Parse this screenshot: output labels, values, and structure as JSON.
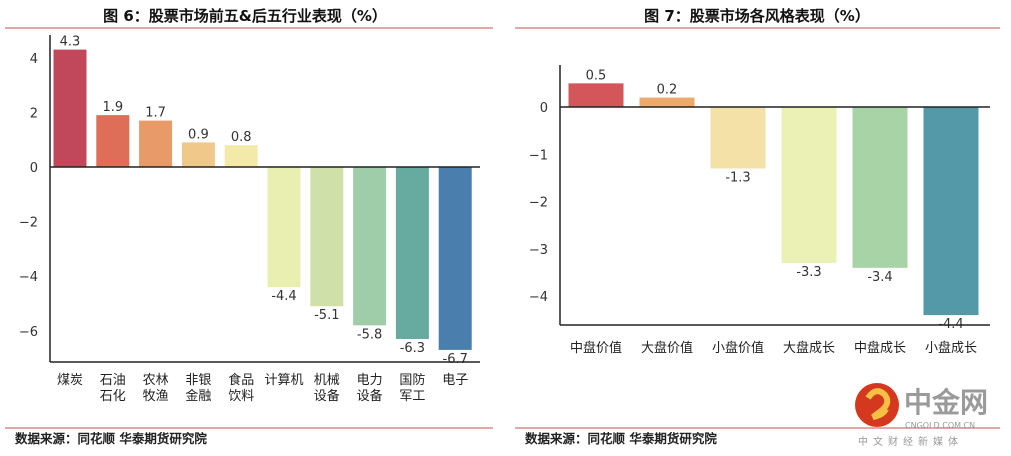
{
  "chart_data": [
    {
      "type": "bar",
      "title": "图 6：股票市场前五&后五行业表现（%）",
      "categories": [
        "煤炭",
        "石油石化",
        "农林牧渔",
        "非银金融",
        "食品饮料",
        "计算机",
        "机械设备",
        "电力设备",
        "国防军工",
        "电子"
      ],
      "values": [
        4.3,
        1.9,
        1.7,
        0.9,
        0.8,
        -4.4,
        -5.1,
        -5.8,
        -6.3,
        -6.7
      ],
      "value_labels": [
        "4.3",
        "1.9",
        "1.7",
        "0.9",
        "0.8",
        "-4.4",
        "-5.1",
        "-5.8",
        "-6.3",
        "-6.7"
      ],
      "colors": [
        "#c0485a",
        "#de6e57",
        "#e89b68",
        "#f0c98a",
        "#f3e9a8",
        "#e9efb0",
        "#cfe0a8",
        "#9fcca9",
        "#67aaa0",
        "#4a7eac"
      ],
      "yticks": [
        4,
        2,
        0,
        -2,
        -4,
        -6
      ],
      "ytick_labels": [
        "4",
        "2",
        "0",
        "−2",
        "−4",
        "−6"
      ],
      "ylim": [
        -7.2,
        4.6
      ],
      "source": "数据来源：同花顺  华泰期货研究院"
    },
    {
      "type": "bar",
      "title": "图 7：股票市场各风格表现（%）",
      "categories": [
        "中盘价值",
        "大盘价值",
        "小盘价值",
        "大盘成长",
        "中盘成长",
        "小盘成长"
      ],
      "values": [
        0.5,
        0.2,
        -1.3,
        -3.3,
        -3.4,
        -4.4
      ],
      "value_labels": [
        "0.5",
        "0.2",
        "-1.3",
        "-3.3",
        "-3.4",
        "-4.4"
      ],
      "colors": [
        "#d2565a",
        "#ecab6d",
        "#f3e1a7",
        "#ebf0b5",
        "#a8d3a7",
        "#5499a8"
      ],
      "yticks": [
        0,
        -1,
        -2,
        -3,
        -4
      ],
      "ytick_labels": [
        "0",
        "−1",
        "−2",
        "−3",
        "−4"
      ],
      "ylim": [
        -4.65,
        0.9
      ],
      "source": "数据来源：同花顺  华泰期货研究院"
    }
  ],
  "watermark": {
    "name": "中金网",
    "domain": "CNGOLD.COM.CN",
    "slogan": "中文财经新媒体"
  }
}
